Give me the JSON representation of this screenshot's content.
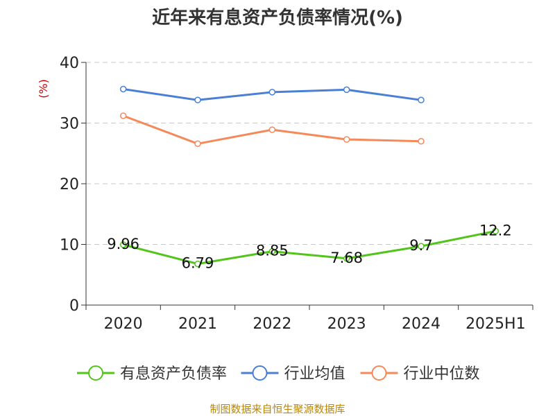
{
  "chart_data": {
    "type": "line",
    "title": "近年来有息资产负债率情况(%)",
    "ylabel": "(%)",
    "xlabel": "",
    "categories": [
      "2020",
      "2021",
      "2022",
      "2023",
      "2024",
      "2025H1"
    ],
    "ylim": [
      0,
      40
    ],
    "yticks": [
      0,
      10,
      20,
      30,
      40
    ],
    "grid": true,
    "legend_position": "bottom",
    "series": [
      {
        "name": "有息资产负债率",
        "color": "#52c41a",
        "values": [
          9.96,
          6.79,
          8.85,
          7.68,
          9.7,
          12.2
        ],
        "labels": [
          "9.96",
          "6.79",
          "8.85",
          "7.68",
          "9.7",
          "12.2"
        ]
      },
      {
        "name": "行业均值",
        "color": "#4a7fd4",
        "values": [
          35.6,
          33.8,
          35.1,
          35.5,
          33.8,
          null
        ]
      },
      {
        "name": "行业中位数",
        "color": "#f5895a",
        "values": [
          31.2,
          26.6,
          28.9,
          27.3,
          27.0,
          null
        ]
      }
    ]
  },
  "source": "制图数据来自恒生聚源数据库"
}
